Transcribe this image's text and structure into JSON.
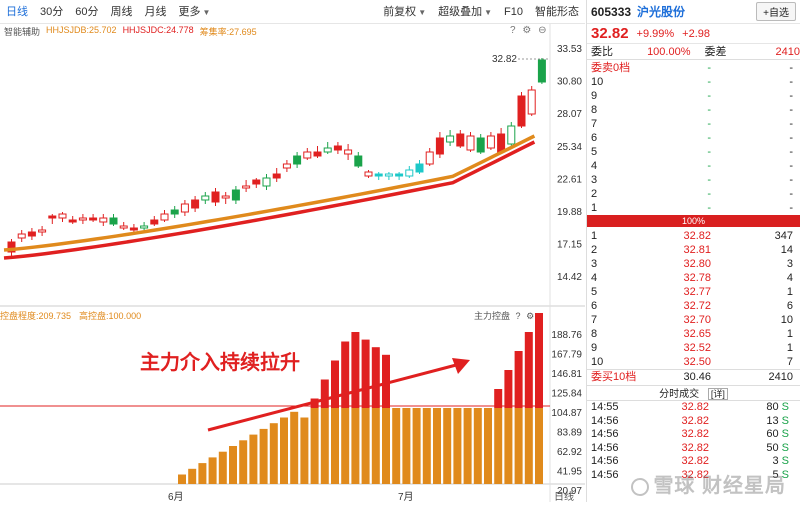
{
  "toolbar": {
    "periods": [
      "日线",
      "30分",
      "60分",
      "周线",
      "月线",
      "更多"
    ],
    "active_period": "日线",
    "right_items": [
      "前复权",
      "超级叠加",
      "F10",
      "智能形态"
    ]
  },
  "indicators": {
    "label": "智能辅助",
    "line1": "HHJSJDB:25.702",
    "line2": "HHJSJDC:24.778",
    "line3": "筹集率:27.695"
  },
  "sub_indicators": {
    "line1": "控盘程度:209.735",
    "line2": "高控盘:100.000",
    "label": "主力控盘"
  },
  "annotation_text": "主力介入持续拉升",
  "price_axis": [
    "33.53",
    "30.80",
    "28.07",
    "25.34",
    "22.61",
    "19.88",
    "17.15",
    "14.42"
  ],
  "last_price_tag": "32.82",
  "sub_axis": [
    "188.76",
    "167.79",
    "146.81",
    "125.84",
    "104.87",
    "83.89",
    "62.92",
    "41.95",
    "20.97"
  ],
  "x_labels": [
    "6月",
    "7月"
  ],
  "bottom_label": "日线",
  "stock": {
    "code": "605333",
    "name": "沪光股份",
    "btn_label": "+自选",
    "price": "32.82",
    "change_pct": "+9.99%",
    "change": "+2.98",
    "weibi_label": "委比",
    "weibi_value": "100.00%",
    "weicha_label": "委差",
    "weicha_value": "2410"
  },
  "asks": [
    {
      "label": "委卖0档",
      "price": "-",
      "vol": "-"
    },
    {
      "label": "10",
      "price": "-",
      "vol": "-"
    },
    {
      "label": "9",
      "price": "-",
      "vol": "-"
    },
    {
      "label": "8",
      "price": "-",
      "vol": "-"
    },
    {
      "label": "7",
      "price": "-",
      "vol": "-"
    },
    {
      "label": "6",
      "price": "-",
      "vol": "-"
    },
    {
      "label": "5",
      "price": "-",
      "vol": "-"
    },
    {
      "label": "4",
      "price": "-",
      "vol": "-"
    },
    {
      "label": "3",
      "price": "-",
      "vol": "-"
    },
    {
      "label": "2",
      "price": "-",
      "vol": "-"
    },
    {
      "label": "1",
      "price": "-",
      "vol": "-"
    }
  ],
  "ratio_bar": "100%",
  "bids": [
    {
      "label": "1",
      "price": "32.82",
      "vol": "347"
    },
    {
      "label": "2",
      "price": "32.81",
      "vol": "14"
    },
    {
      "label": "3",
      "price": "32.80",
      "vol": "3"
    },
    {
      "label": "4",
      "price": "32.78",
      "vol": "4"
    },
    {
      "label": "5",
      "price": "32.77",
      "vol": "1"
    },
    {
      "label": "6",
      "price": "32.72",
      "vol": "6"
    },
    {
      "label": "7",
      "price": "32.70",
      "vol": "10"
    },
    {
      "label": "8",
      "price": "32.65",
      "vol": "1"
    },
    {
      "label": "9",
      "price": "32.52",
      "vol": "1"
    },
    {
      "label": "10",
      "price": "32.50",
      "vol": "7"
    }
  ],
  "bid_total": {
    "label": "委买10档",
    "price": "30.46",
    "vol": "2410"
  },
  "ticks_title": "分时成交",
  "ticks_detail": "[详]",
  "ticks": [
    {
      "time": "14:55",
      "price": "32.82",
      "vol": "80",
      "side": "S"
    },
    {
      "time": "14:56",
      "price": "32.82",
      "vol": "13",
      "side": "S"
    },
    {
      "time": "14:56",
      "price": "32.82",
      "vol": "60",
      "side": "S"
    },
    {
      "time": "14:56",
      "price": "32.82",
      "vol": "50",
      "side": "S"
    },
    {
      "time": "14:56",
      "price": "32.82",
      "vol": "3",
      "side": "S"
    },
    {
      "time": "14:56",
      "price": "32.82",
      "vol": "5",
      "side": "S"
    }
  ],
  "watermark": "雪球 财经星局",
  "colors": {
    "up": "#e02020",
    "down": "#1aa34a",
    "blue": "#1e6fd9",
    "orange": "#e08a1c"
  }
}
